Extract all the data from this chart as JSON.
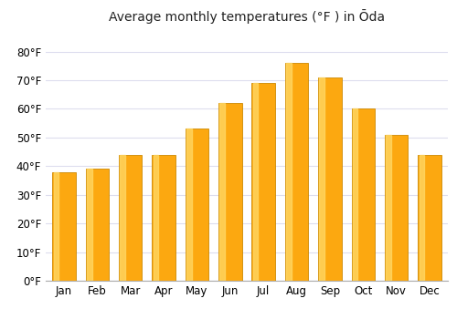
{
  "title": "Average monthly temperatures (°F ) in Ōda",
  "months": [
    "Jan",
    "Feb",
    "Mar",
    "Apr",
    "May",
    "Jun",
    "Jul",
    "Aug",
    "Sep",
    "Oct",
    "Nov",
    "Dec"
  ],
  "values": [
    38,
    39,
    44,
    44,
    53,
    62,
    69,
    76,
    71,
    60,
    51,
    44
  ],
  "ylim": [
    0,
    88
  ],
  "yticks": [
    0,
    10,
    20,
    30,
    40,
    50,
    60,
    70,
    80
  ],
  "ytick_labels": [
    "0°F",
    "10°F",
    "20°F",
    "30°F",
    "40°F",
    "50°F",
    "60°F",
    "70°F",
    "80°F"
  ],
  "bar_color_main": "#FCA810",
  "bar_color_light": "#FFD966",
  "bar_color_dark": "#CC8800",
  "background_color": "#FFFFFF",
  "grid_color": "#DDDDEE",
  "title_fontsize": 10,
  "tick_fontsize": 8.5,
  "bar_width": 0.7
}
